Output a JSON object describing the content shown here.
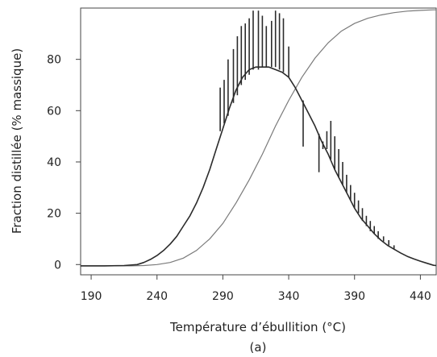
{
  "chart_data": {
    "type": "line",
    "title": "",
    "xlabel": "Température d’ébullition (°C)",
    "ylabel": "Fraction distillée (% massique)",
    "caption": "(a)",
    "xlim": [
      182,
      452
    ],
    "ylim": [
      -4,
      100
    ],
    "xticks": [
      190,
      240,
      290,
      340,
      390,
      440
    ],
    "yticks": [
      0,
      20,
      40,
      60,
      80
    ],
    "grid": false,
    "legend": "none",
    "series": [
      {
        "type": "distribution",
        "x": [
          182,
          200,
          215,
          225,
          230,
          235,
          240,
          245,
          250,
          255,
          260,
          265,
          270,
          275,
          280,
          285,
          290,
          295,
          300,
          305,
          310,
          315,
          320,
          325,
          330,
          335,
          340,
          345,
          350,
          355,
          360,
          365,
          370,
          375,
          380,
          385,
          390,
          395,
          400,
          405,
          410,
          415,
          420,
          425,
          430,
          435,
          440,
          445,
          450,
          452
        ],
        "y": [
          -0.5,
          -0.5,
          -0.4,
          0,
          0.8,
          2,
          3.5,
          5.5,
          8,
          11,
          15,
          19,
          24,
          30,
          37,
          45,
          53,
          61,
          68,
          73,
          76,
          77,
          77,
          77,
          76,
          75,
          73,
          69,
          64,
          59,
          54,
          48,
          43,
          37,
          32,
          27,
          22,
          18,
          15,
          12,
          9.5,
          7.5,
          6,
          4.5,
          3.2,
          2.2,
          1.3,
          0.5,
          -0.3,
          -0.4
        ],
        "spikes": [
          {
            "x": 288,
            "base": 52,
            "peak": 69
          },
          {
            "x": 291,
            "base": 55,
            "peak": 72
          },
          {
            "x": 294,
            "base": 58,
            "peak": 80
          },
          {
            "x": 298,
            "base": 63,
            "peak": 84
          },
          {
            "x": 301,
            "base": 66,
            "peak": 89
          },
          {
            "x": 304,
            "base": 70,
            "peak": 93
          },
          {
            "x": 307,
            "base": 72,
            "peak": 94
          },
          {
            "x": 310,
            "base": 74,
            "peak": 96
          },
          {
            "x": 313,
            "base": 76,
            "peak": 99
          },
          {
            "x": 317,
            "base": 76,
            "peak": 99
          },
          {
            "x": 320,
            "base": 77,
            "peak": 97
          },
          {
            "x": 323,
            "base": 77,
            "peak": 93
          },
          {
            "x": 327,
            "base": 77,
            "peak": 95
          },
          {
            "x": 330,
            "base": 77,
            "peak": 99
          },
          {
            "x": 333,
            "base": 76,
            "peak": 98
          },
          {
            "x": 336,
            "base": 75,
            "peak": 96
          },
          {
            "x": 340,
            "base": 73,
            "peak": 85
          },
          {
            "x": 351,
            "base": 64,
            "peak": 46
          },
          {
            "x": 363,
            "base": 51,
            "peak": 36
          },
          {
            "x": 366,
            "base": 48,
            "peak": 45
          },
          {
            "x": 369,
            "base": 45,
            "peak": 52
          },
          {
            "x": 372,
            "base": 41,
            "peak": 56
          },
          {
            "x": 375,
            "base": 37,
            "peak": 50
          },
          {
            "x": 378,
            "base": 34,
            "peak": 45
          },
          {
            "x": 381,
            "base": 31,
            "peak": 40
          },
          {
            "x": 384,
            "base": 28,
            "peak": 35
          },
          {
            "x": 387,
            "base": 25,
            "peak": 31
          },
          {
            "x": 390,
            "base": 22,
            "peak": 28
          },
          {
            "x": 393,
            "base": 20,
            "peak": 25
          },
          {
            "x": 396,
            "base": 17,
            "peak": 22
          },
          {
            "x": 399,
            "base": 15,
            "peak": 19
          },
          {
            "x": 402,
            "base": 13,
            "peak": 17
          },
          {
            "x": 405,
            "base": 12,
            "peak": 15
          },
          {
            "x": 408,
            "base": 10,
            "peak": 13
          },
          {
            "x": 412,
            "base": 9,
            "peak": 11
          },
          {
            "x": 416,
            "base": 7.5,
            "peak": 9.5
          },
          {
            "x": 420,
            "base": 6,
            "peak": 7.5
          }
        ],
        "color": "#2b2b2b"
      },
      {
        "type": "cumulative",
        "x": [
          182,
          220,
          230,
          240,
          250,
          260,
          270,
          280,
          290,
          300,
          310,
          320,
          330,
          340,
          350,
          360,
          370,
          380,
          390,
          400,
          410,
          420,
          430,
          440,
          450,
          452
        ],
        "y": [
          -0.5,
          -0.5,
          -0.4,
          0,
          0.8,
          2.5,
          5.5,
          10,
          16,
          24,
          33,
          43,
          54,
          64,
          73,
          80.5,
          86.5,
          91,
          94,
          96,
          97.3,
          98.2,
          98.8,
          99.1,
          99.3,
          99.3
        ],
        "color": "#7a7a7a"
      }
    ]
  }
}
